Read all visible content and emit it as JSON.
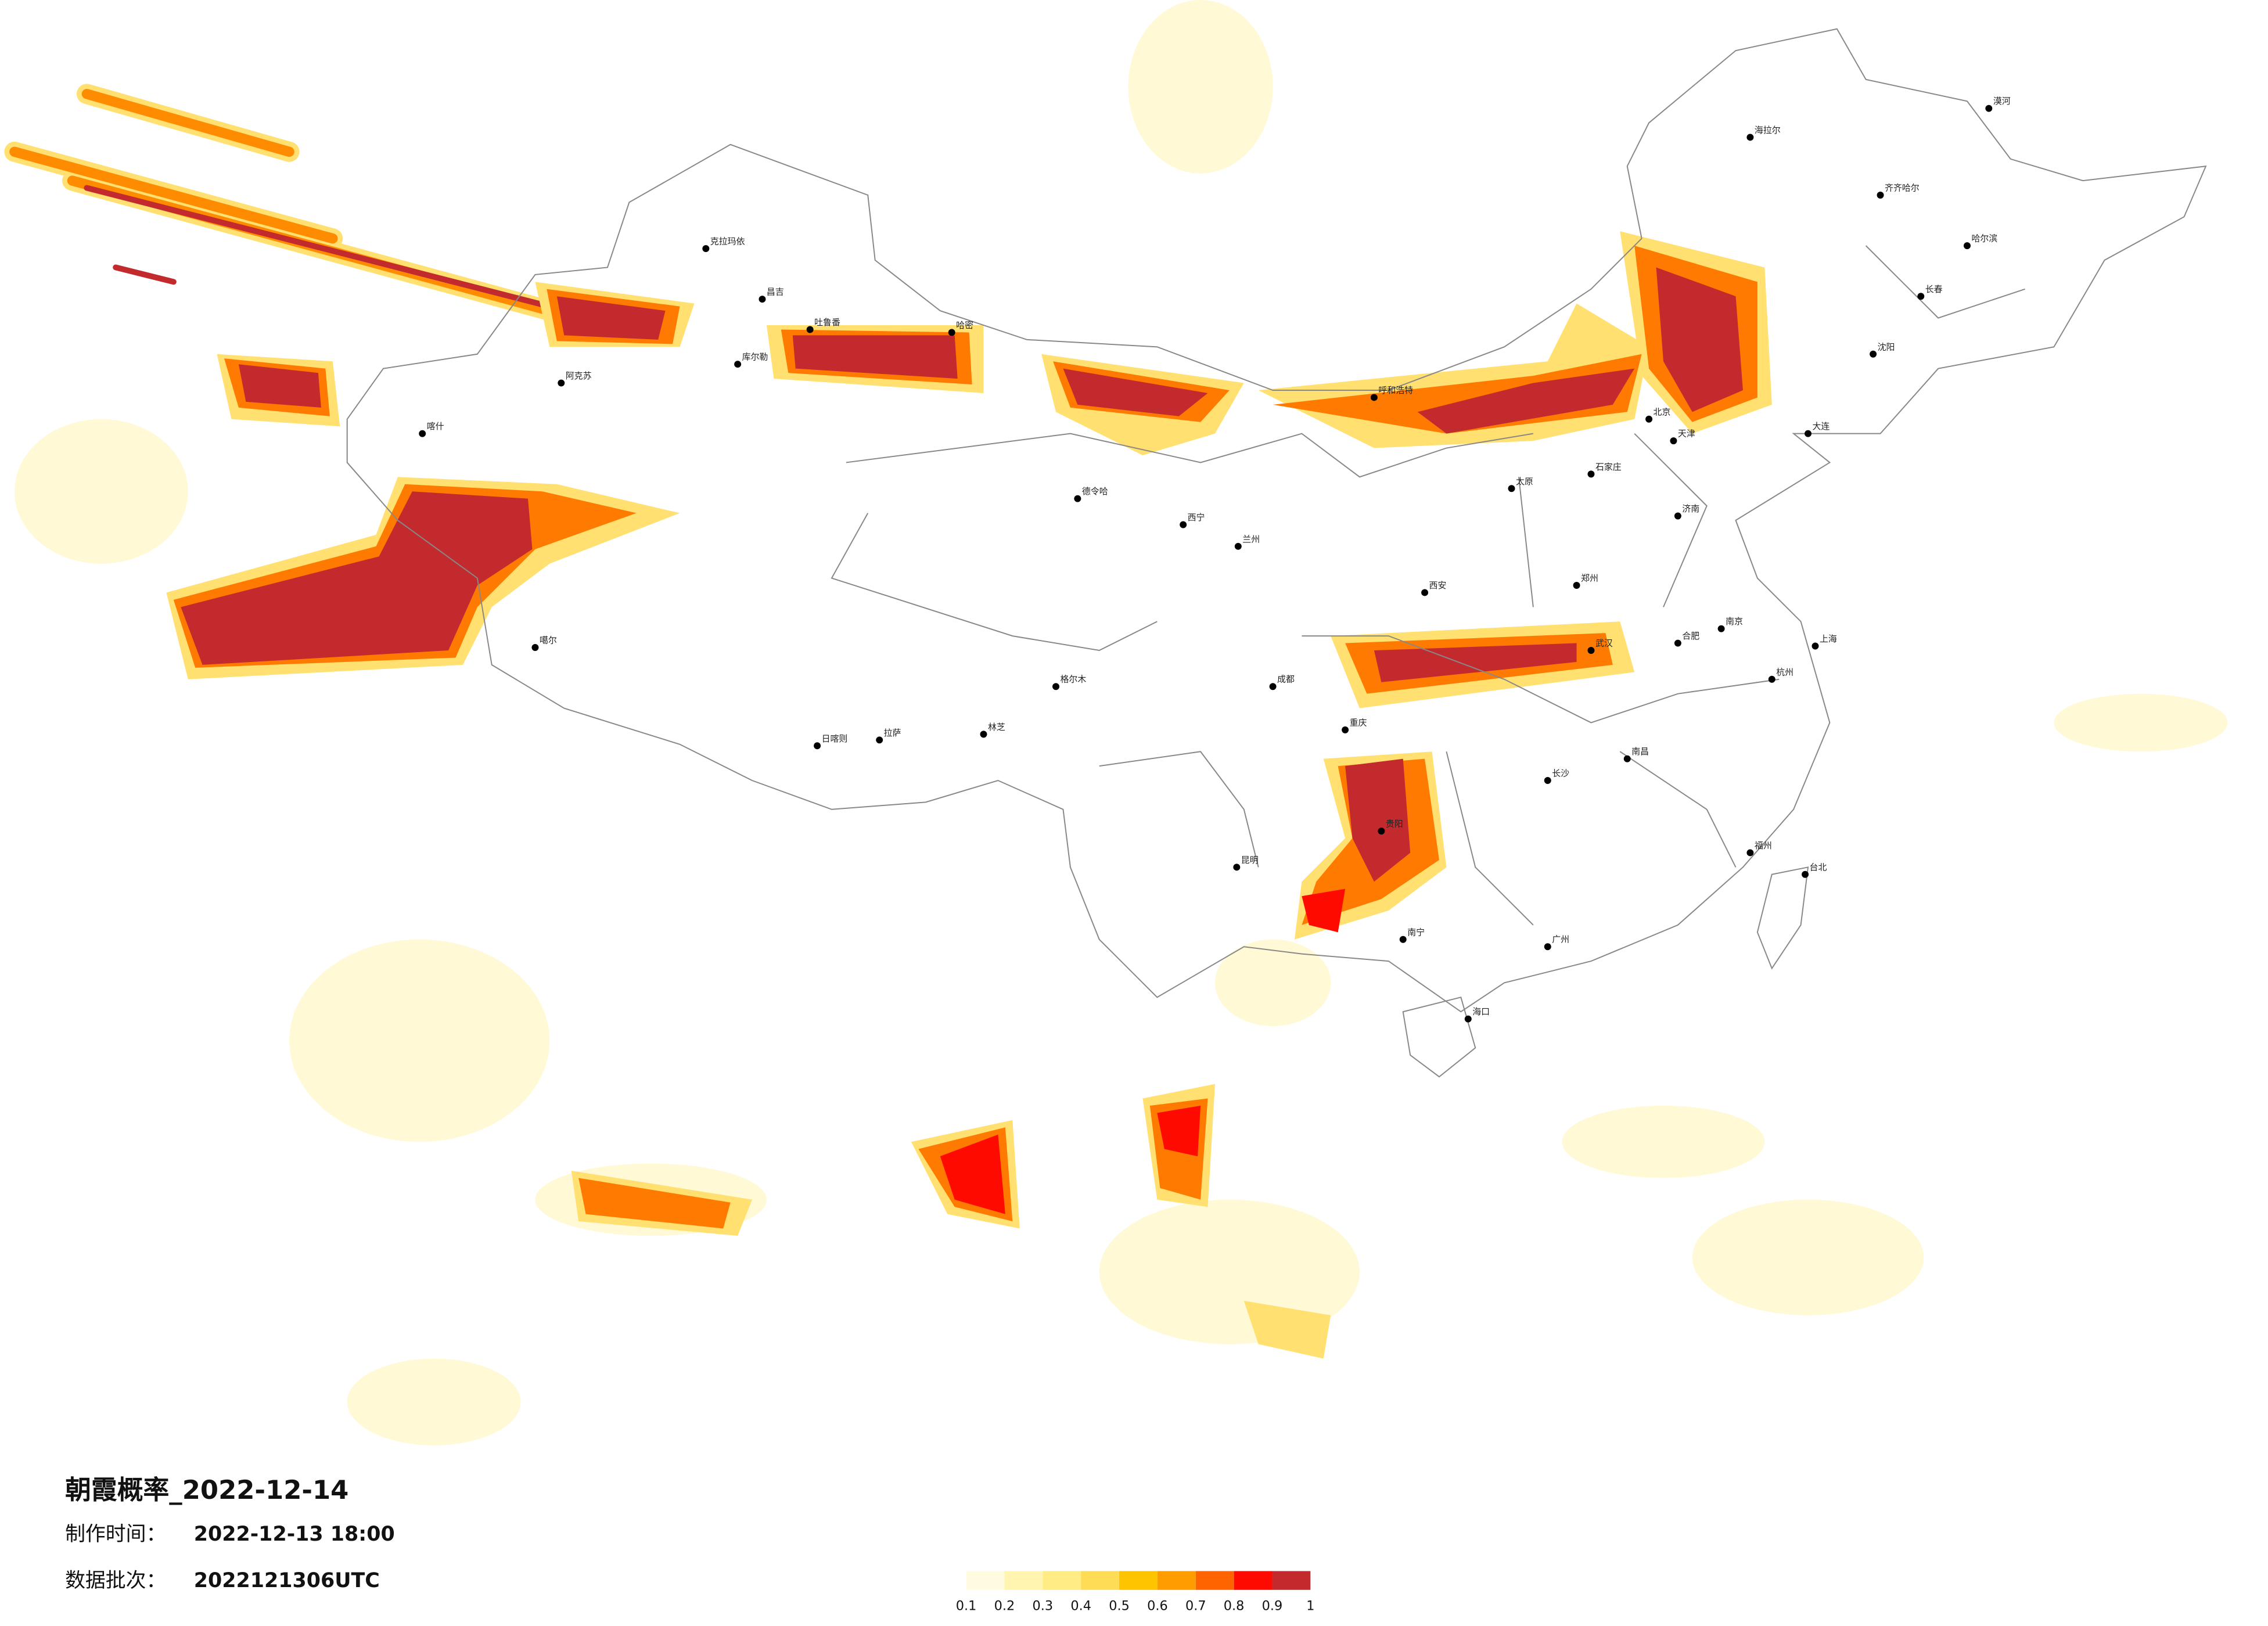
{
  "title": "朝霞概率_2022-12-14",
  "production_time": {
    "label": "制作时间：",
    "value": "2022-12-13 18:00"
  },
  "data_batch": {
    "label": "数据批次：",
    "value": "2022121306UTC"
  },
  "legend": {
    "colors": [
      "#fffbe0",
      "#fff4b0",
      "#ffec85",
      "#ffdc55",
      "#ffc400",
      "#ff9d00",
      "#ff6400",
      "#ff0a00",
      "#c32a2e"
    ],
    "ticks": [
      0.1,
      0.2,
      0.3,
      0.4,
      0.5,
      0.6,
      0.7,
      0.8,
      0.9,
      1
    ]
  },
  "cities": [
    "克拉玛依",
    "昌吉",
    "吐鲁番",
    "哈密",
    "库尔勒",
    "阿克苏",
    "喀什",
    "噶尔",
    "拉萨",
    "日喀则",
    "林芝",
    "格尔木",
    "德令哈",
    "西宁",
    "兰州",
    "呼和浩特",
    "北京",
    "天津",
    "石家庄",
    "太原",
    "济南",
    "郑州",
    "西安",
    "武汉",
    "南京",
    "上海",
    "杭州",
    "合肥",
    "成都",
    "重庆",
    "贵阳",
    "昆明",
    "南宁",
    "广州",
    "长沙",
    "南昌",
    "福州",
    "台北",
    "海口",
    "哈尔滨",
    "长春",
    "沈阳",
    "大连",
    "海拉尔",
    "齐齐哈尔",
    "漠河"
  ]
}
